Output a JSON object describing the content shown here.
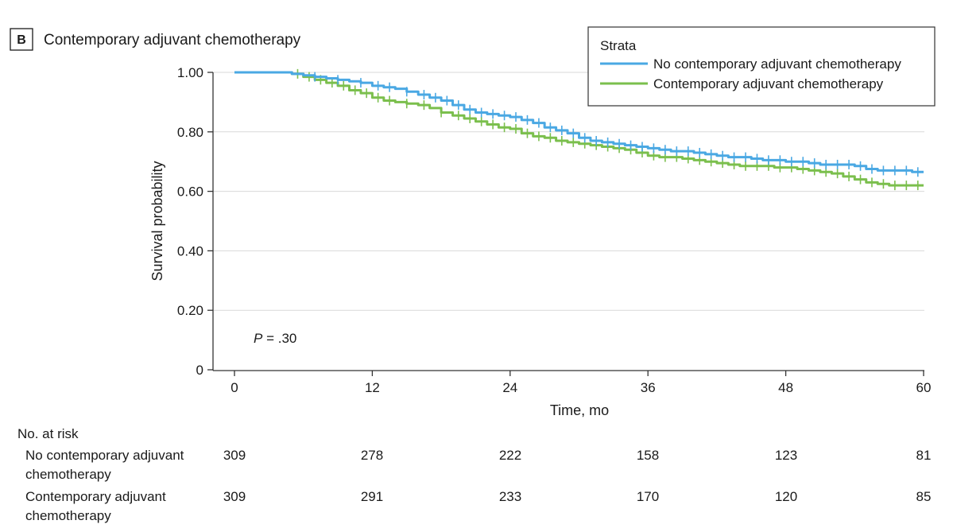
{
  "panel_letter": "B",
  "colors": {
    "series_1": "#4aa8e3",
    "series_2": "#7bbf4d",
    "grid": "#d9d9d9",
    "axis": "#333333"
  },
  "chart_data": {
    "type": "line",
    "title": "Contemporary adjuvant chemotherapy",
    "xlabel": "Time, mo",
    "ylabel": "Survival probability",
    "xlim": [
      0,
      60
    ],
    "ylim": [
      0,
      1
    ],
    "x_ticks": [
      0,
      12,
      24,
      36,
      48,
      60
    ],
    "x_tick_labels": [
      "0",
      "12",
      "24",
      "36",
      "48",
      "60"
    ],
    "y_ticks": [
      0,
      0.2,
      0.4,
      0.6,
      0.8,
      1.0
    ],
    "y_tick_labels": [
      "0",
      "0.20",
      "0.40",
      "0.60",
      "0.80",
      "1.00"
    ],
    "grid": "horizontal",
    "annotation": {
      "italic": "P",
      "text": " = .30"
    },
    "legend": {
      "title": "Strata",
      "placement": "top-right"
    },
    "series": [
      {
        "name": "No contemporary adjuvant chemotherapy",
        "color": "#4aa8e3",
        "x": [
          0,
          4,
          5,
          6,
          7,
          8,
          9,
          10,
          11,
          12,
          13,
          14,
          15,
          16,
          17,
          18,
          19,
          20,
          21,
          22,
          23,
          24,
          25,
          26,
          27,
          28,
          29,
          30,
          31,
          32,
          33,
          34,
          35,
          36,
          37,
          38,
          39,
          40,
          41,
          42,
          43,
          44,
          45,
          46,
          47,
          48,
          49,
          50,
          51,
          52,
          53,
          54,
          55,
          56,
          57,
          58,
          59,
          60
        ],
        "y": [
          1.0,
          1.0,
          0.995,
          0.99,
          0.985,
          0.98,
          0.975,
          0.97,
          0.965,
          0.955,
          0.95,
          0.945,
          0.935,
          0.925,
          0.915,
          0.905,
          0.89,
          0.875,
          0.865,
          0.86,
          0.855,
          0.85,
          0.84,
          0.83,
          0.815,
          0.805,
          0.795,
          0.78,
          0.77,
          0.765,
          0.76,
          0.755,
          0.75,
          0.745,
          0.74,
          0.735,
          0.735,
          0.73,
          0.725,
          0.72,
          0.715,
          0.715,
          0.71,
          0.705,
          0.705,
          0.7,
          0.7,
          0.695,
          0.69,
          0.69,
          0.69,
          0.685,
          0.675,
          0.67,
          0.67,
          0.67,
          0.665,
          0.665
        ],
        "censor_x": [
          7,
          9,
          11,
          12.5,
          13.5,
          15,
          16.5,
          17.5,
          18.5,
          19.5,
          20.5,
          21.5,
          22.5,
          23.5,
          24.5,
          25.5,
          26.5,
          27.5,
          28.5,
          29.5,
          30.5,
          31.5,
          32.5,
          33.5,
          34.5,
          35.5,
          36.5,
          37.5,
          38.5,
          39.5,
          40.5,
          41.5,
          42.5,
          43.5,
          44.5,
          45.5,
          46.5,
          47.5,
          48.5,
          49.5,
          50.5,
          51.5,
          52.5,
          53.5,
          54.5,
          55.5,
          56.5,
          57.5,
          58.5,
          59.5
        ]
      },
      {
        "name": "Contemporary adjuvant chemotherapy",
        "color": "#7bbf4d",
        "x": [
          0,
          4,
          5,
          6,
          7,
          8,
          9,
          10,
          11,
          12,
          13,
          14,
          15,
          16,
          17,
          18,
          19,
          20,
          21,
          22,
          23,
          24,
          25,
          26,
          27,
          28,
          29,
          30,
          31,
          32,
          33,
          34,
          35,
          36,
          37,
          38,
          39,
          40,
          41,
          42,
          43,
          44,
          45,
          46,
          47,
          48,
          49,
          50,
          51,
          52,
          53,
          54,
          55,
          56,
          57,
          58,
          59,
          60
        ],
        "y": [
          1.0,
          1.0,
          0.995,
          0.985,
          0.975,
          0.965,
          0.955,
          0.94,
          0.93,
          0.915,
          0.905,
          0.9,
          0.895,
          0.89,
          0.88,
          0.865,
          0.855,
          0.845,
          0.835,
          0.825,
          0.815,
          0.81,
          0.795,
          0.785,
          0.78,
          0.77,
          0.765,
          0.76,
          0.755,
          0.75,
          0.745,
          0.74,
          0.73,
          0.72,
          0.715,
          0.715,
          0.71,
          0.705,
          0.7,
          0.695,
          0.69,
          0.685,
          0.685,
          0.685,
          0.68,
          0.68,
          0.675,
          0.67,
          0.665,
          0.66,
          0.65,
          0.64,
          0.63,
          0.625,
          0.62,
          0.62,
          0.62,
          0.62
        ],
        "censor_x": [
          5.5,
          6.5,
          7.5,
          8.5,
          9.5,
          10.5,
          11.5,
          12.5,
          13.5,
          15,
          16.5,
          18,
          19.5,
          20.5,
          21.5,
          22.5,
          23.5,
          24.5,
          25.5,
          26.5,
          27.5,
          28.5,
          29.5,
          30.5,
          31.5,
          32.5,
          33.5,
          34.5,
          35.5,
          36.5,
          37.5,
          38.5,
          39.5,
          40.5,
          41.5,
          42.5,
          43.5,
          44.5,
          45.5,
          46.5,
          47.5,
          48.5,
          49.5,
          50.5,
          51.5,
          52.5,
          53.5,
          54.5,
          55.5,
          56.5,
          57.5,
          58.5,
          59.5
        ]
      }
    ]
  },
  "risk_table": {
    "heading": "No. at risk",
    "rows": [
      {
        "label_line1": "No contemporary adjuvant",
        "label_line2": "chemotherapy",
        "values": [
          "309",
          "278",
          "222",
          "158",
          "123",
          "81"
        ]
      },
      {
        "label_line1": "Contemporary adjuvant",
        "label_line2": "chemotherapy",
        "values": [
          "309",
          "291",
          "233",
          "170",
          "120",
          "85"
        ]
      }
    ]
  }
}
